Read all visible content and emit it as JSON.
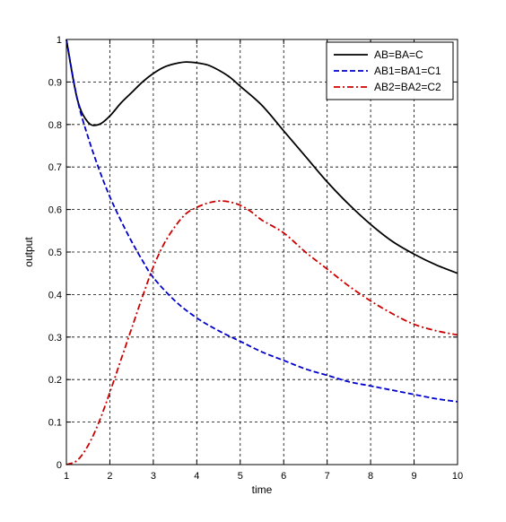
{
  "chart_data": {
    "type": "line",
    "title": "",
    "xlabel": "time",
    "ylabel": "output",
    "xlim": [
      1,
      10
    ],
    "ylim": [
      0,
      1
    ],
    "xticks": [
      1,
      2,
      3,
      4,
      5,
      6,
      7,
      8,
      9,
      10
    ],
    "xtick_labels": [
      "1",
      "2",
      "3",
      "4",
      "5",
      "6",
      "7",
      "8",
      "9",
      "10"
    ],
    "yticks": [
      0,
      0.1,
      0.2,
      0.3,
      0.4,
      0.5,
      0.6,
      0.7,
      0.8,
      0.9,
      1
    ],
    "ytick_labels": [
      "0",
      "0.1",
      "0.2",
      "0.3",
      "0.4",
      "0.5",
      "0.6",
      "0.7",
      "0.8",
      "0.9",
      "1"
    ],
    "grid": true,
    "legend_position": "top-right",
    "series": [
      {
        "name": "AB=BA=C",
        "color": "#000000",
        "dash": "solid",
        "x": [
          1,
          1.25,
          1.5,
          1.75,
          2,
          2.25,
          2.5,
          2.75,
          3,
          3.25,
          3.5,
          3.75,
          4,
          4.25,
          4.5,
          4.75,
          5,
          5.5,
          6,
          6.5,
          7,
          7.5,
          8,
          8.5,
          9,
          9.5,
          10
        ],
        "y": [
          1.0,
          0.86,
          0.805,
          0.8,
          0.82,
          0.85,
          0.875,
          0.9,
          0.92,
          0.935,
          0.943,
          0.947,
          0.945,
          0.94,
          0.928,
          0.912,
          0.89,
          0.845,
          0.785,
          0.725,
          0.665,
          0.612,
          0.565,
          0.525,
          0.495,
          0.47,
          0.45
        ]
      },
      {
        "name": "AB1=BA1=C1",
        "color": "#0000cc",
        "dash": "dashed",
        "x": [
          1,
          1.25,
          1.5,
          1.75,
          2,
          2.25,
          2.5,
          2.75,
          3,
          3.5,
          4,
          4.5,
          5,
          5.5,
          6,
          6.5,
          7,
          7.5,
          8,
          8.5,
          9,
          9.5,
          10
        ],
        "y": [
          1.0,
          0.86,
          0.77,
          0.695,
          0.63,
          0.575,
          0.525,
          0.48,
          0.44,
          0.385,
          0.345,
          0.315,
          0.29,
          0.265,
          0.245,
          0.225,
          0.21,
          0.195,
          0.185,
          0.175,
          0.165,
          0.155,
          0.148
        ]
      },
      {
        "name": "AB2=BA2=C2",
        "color": "#cc0000",
        "dash": "dashdot",
        "x": [
          1,
          1.25,
          1.5,
          1.75,
          2,
          2.25,
          2.5,
          2.75,
          3,
          3.25,
          3.5,
          3.75,
          4,
          4.25,
          4.5,
          4.75,
          5,
          5.25,
          5.5,
          6,
          6.5,
          7,
          7.5,
          8,
          8.5,
          9,
          9.5,
          10
        ],
        "y": [
          0.0,
          0.01,
          0.045,
          0.1,
          0.17,
          0.245,
          0.32,
          0.395,
          0.465,
          0.52,
          0.56,
          0.59,
          0.605,
          0.615,
          0.62,
          0.618,
          0.61,
          0.595,
          0.575,
          0.545,
          0.5,
          0.46,
          0.42,
          0.385,
          0.355,
          0.33,
          0.315,
          0.305
        ]
      }
    ]
  }
}
